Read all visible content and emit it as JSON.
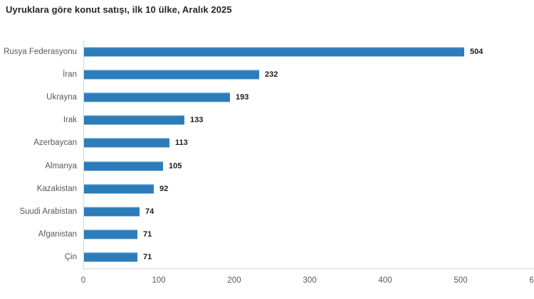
{
  "title": "Uyruklara göre konut satışı, ilk 10 ülke, Aralık 2025",
  "colors": {
    "bar": "#2d7cba",
    "bar_top_edge": "#4a94cc",
    "axis_line": "#d6d6d6",
    "category_label": "#595959",
    "tick_label": "#595959",
    "value_label": "#1a1a1a",
    "title": "#262626",
    "background": "#ffffff"
  },
  "chart_data": {
    "type": "bar",
    "orientation": "horizontal",
    "title": "Uyruklara göre konut satışı, ilk 10 ülke, Aralık 2025",
    "categories": [
      "Rusya Federasyonu",
      "İran",
      "Ukrayna",
      "Irak",
      "Azerbaycan",
      "Almanya",
      "Kazakistan",
      "Suudi Arabistan",
      "Afganistan",
      "Çin"
    ],
    "values": [
      504,
      232,
      193,
      133,
      113,
      105,
      92,
      74,
      71,
      71
    ],
    "xlabel": "",
    "ylabel": "",
    "xlim": [
      0,
      600
    ],
    "xticks": [
      0,
      100,
      200,
      300,
      400,
      500,
      600
    ],
    "grid": false,
    "legend": "none",
    "value_labels": true
  }
}
